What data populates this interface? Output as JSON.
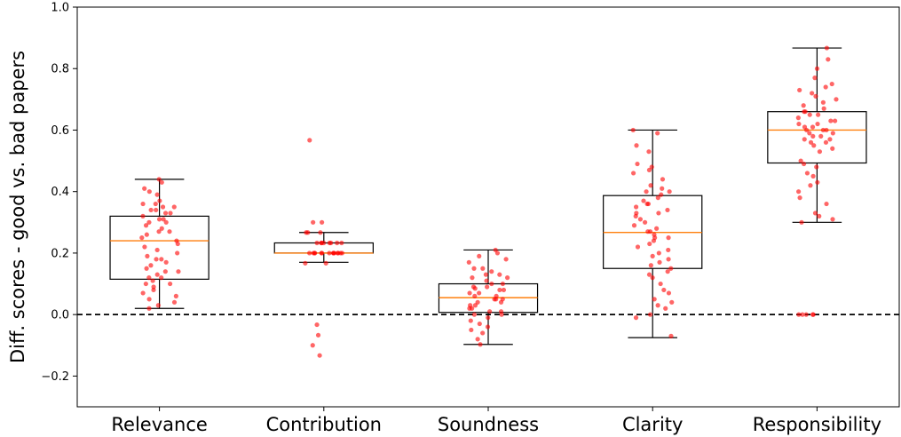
{
  "chart_data": {
    "type": "box",
    "ylabel": "Diff. scores - good vs. bad papers",
    "ylim": [
      -0.3,
      1.0
    ],
    "yticks": [
      -0.2,
      0.0,
      0.2,
      0.4,
      0.6,
      0.8,
      1.0
    ],
    "ytick_labels": [
      "−0.2",
      "0.0",
      "0.2",
      "0.4",
      "0.6",
      "0.8",
      "1.0"
    ],
    "reference_line": {
      "y": 0.0,
      "style": "dashed",
      "color": "#000000"
    },
    "categories": [
      "Relevance",
      "Contribution",
      "Soundness",
      "Clarity",
      "Responsibility"
    ],
    "boxes": [
      {
        "category": "Relevance",
        "whisker_low": 0.02,
        "q1": 0.115,
        "median": 0.24,
        "q3": 0.32,
        "whisker_high": 0.44
      },
      {
        "category": "Contribution",
        "whisker_low": 0.17,
        "q1": 0.2,
        "median": 0.2,
        "q3": 0.233,
        "whisker_high": 0.267
      },
      {
        "category": "Soundness",
        "whisker_low": -0.097,
        "q1": 0.007,
        "median": 0.055,
        "q3": 0.1,
        "whisker_high": 0.21
      },
      {
        "category": "Clarity",
        "whisker_low": -0.075,
        "q1": 0.15,
        "median": 0.267,
        "q3": 0.387,
        "whisker_high": 0.6
      },
      {
        "category": "Responsibility",
        "whisker_low": 0.3,
        "q1": 0.493,
        "median": 0.6,
        "q3": 0.66,
        "whisker_high": 0.867
      }
    ],
    "points": [
      [
        0.44,
        0.43,
        0.41,
        0.4,
        0.39,
        0.37,
        0.36,
        0.35,
        0.35,
        0.34,
        0.34,
        0.33,
        0.33,
        0.32,
        0.31,
        0.3,
        0.3,
        0.29,
        0.28,
        0.27,
        0.26,
        0.25,
        0.24,
        0.23,
        0.22,
        0.21,
        0.2,
        0.19,
        0.18,
        0.18,
        0.17,
        0.16,
        0.15,
        0.14,
        0.13,
        0.12,
        0.12,
        0.11,
        0.1,
        0.1,
        0.09,
        0.08,
        0.07,
        0.06,
        0.05,
        0.04,
        0.03,
        0.02,
        0.31,
        0.36,
        0.27,
        0.14
      ],
      [
        0.567,
        0.3,
        0.3,
        0.267,
        0.267,
        0.267,
        0.233,
        0.233,
        0.233,
        0.233,
        0.233,
        0.233,
        0.233,
        0.233,
        0.2,
        0.2,
        0.2,
        0.2,
        0.2,
        0.2,
        0.2,
        0.2,
        0.2,
        0.2,
        0.2,
        0.2,
        0.2,
        0.2,
        0.167,
        0.167,
        -0.033,
        -0.067,
        -0.1,
        -0.133
      ],
      [
        0.21,
        0.2,
        0.19,
        0.18,
        0.17,
        0.15,
        0.14,
        0.13,
        0.12,
        0.12,
        0.11,
        0.1,
        0.1,
        0.09,
        0.09,
        0.08,
        0.08,
        0.07,
        0.07,
        0.06,
        0.06,
        0.05,
        0.05,
        0.05,
        0.04,
        0.04,
        0.03,
        0.03,
        0.02,
        0.02,
        0.01,
        0.01,
        0.0,
        0.0,
        -0.01,
        -0.02,
        -0.03,
        -0.04,
        -0.05,
        -0.06,
        -0.08,
        -0.097,
        0.13,
        0.15,
        0.085
      ],
      [
        0.6,
        0.59,
        0.55,
        0.53,
        0.49,
        0.48,
        0.47,
        0.46,
        0.44,
        0.42,
        0.41,
        0.4,
        0.4,
        0.39,
        0.38,
        0.37,
        0.36,
        0.35,
        0.34,
        0.33,
        0.32,
        0.31,
        0.3,
        0.29,
        0.28,
        0.27,
        0.27,
        0.26,
        0.25,
        0.24,
        0.23,
        0.22,
        0.21,
        0.2,
        0.19,
        0.18,
        0.17,
        0.16,
        0.15,
        0.14,
        0.13,
        0.12,
        0.1,
        0.08,
        0.07,
        0.05,
        0.04,
        0.03,
        0.02,
        0.0,
        -0.01,
        -0.07,
        0.25,
        0.33,
        0.36
      ],
      [
        0.867,
        0.83,
        0.8,
        0.77,
        0.75,
        0.74,
        0.73,
        0.72,
        0.71,
        0.7,
        0.69,
        0.68,
        0.67,
        0.66,
        0.66,
        0.65,
        0.65,
        0.64,
        0.63,
        0.62,
        0.62,
        0.61,
        0.61,
        0.6,
        0.6,
        0.6,
        0.59,
        0.59,
        0.58,
        0.58,
        0.57,
        0.57,
        0.56,
        0.55,
        0.54,
        0.53,
        0.5,
        0.49,
        0.48,
        0.46,
        0.45,
        0.43,
        0.42,
        0.4,
        0.38,
        0.36,
        0.33,
        0.32,
        0.31,
        0.3,
        0.0,
        0.0,
        0.0,
        0.0,
        0.0,
        0.56,
        0.63
      ]
    ],
    "grid": false,
    "colors": {
      "box": "#000000",
      "median": "#ff7f0e",
      "points": "#ff0000"
    }
  }
}
